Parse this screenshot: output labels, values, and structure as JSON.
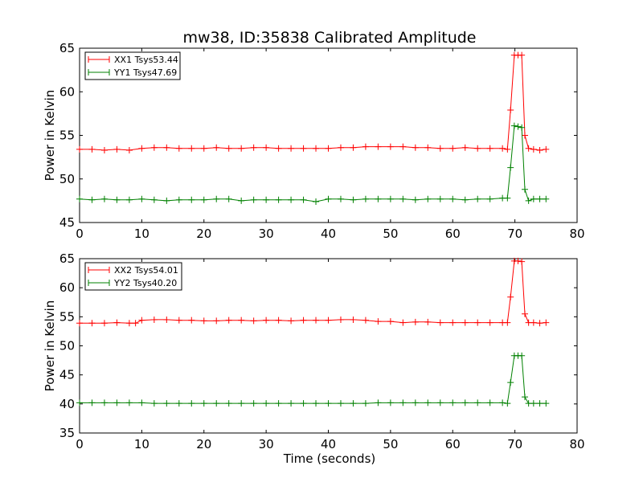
{
  "figure": {
    "title": "mw38, ID:35838 Calibrated Amplitude",
    "xlabel": "Time (seconds)"
  },
  "chart_data": [
    {
      "type": "line",
      "title": "mw38, ID:35838 Calibrated Amplitude",
      "xlabel": "",
      "ylabel": "Power in Kelvin",
      "xlim": [
        0,
        80
      ],
      "ylim": [
        45,
        65
      ],
      "xticks": [
        "0",
        "10",
        "20",
        "30",
        "40",
        "50",
        "60",
        "70",
        "80"
      ],
      "yticks": [
        "45",
        "50",
        "55",
        "60",
        "65"
      ],
      "legend_position": "top-left",
      "grid": false,
      "series": [
        {
          "name": "XX1 Tsys53.44",
          "color": "#ff0000",
          "x": [
            0,
            2,
            4,
            6,
            8,
            10,
            12,
            14,
            16,
            18,
            20,
            22,
            24,
            26,
            28,
            30,
            32,
            34,
            36,
            38,
            40,
            42,
            44,
            46,
            48,
            50,
            52,
            54,
            56,
            58,
            60,
            62,
            64,
            66,
            68,
            68.8,
            69.3,
            69.9,
            70.5,
            71.1,
            71.6,
            72.2,
            73,
            74,
            75
          ],
          "values": [
            53.4,
            53.4,
            53.3,
            53.4,
            53.3,
            53.5,
            53.6,
            53.6,
            53.5,
            53.5,
            53.5,
            53.6,
            53.5,
            53.5,
            53.6,
            53.6,
            53.5,
            53.5,
            53.5,
            53.5,
            53.5,
            53.6,
            53.6,
            53.7,
            53.7,
            53.7,
            53.7,
            53.6,
            53.6,
            53.5,
            53.5,
            53.6,
            53.5,
            53.5,
            53.5,
            53.4,
            57.9,
            64.2,
            64.2,
            64.2,
            55.0,
            53.5,
            53.4,
            53.3,
            53.4
          ]
        },
        {
          "name": "YY1 Tsys47.69",
          "color": "#008000",
          "x": [
            0,
            2,
            4,
            6,
            8,
            10,
            12,
            14,
            16,
            18,
            20,
            22,
            24,
            26,
            28,
            30,
            32,
            34,
            36,
            38,
            40,
            42,
            44,
            46,
            48,
            50,
            52,
            54,
            56,
            58,
            60,
            62,
            64,
            66,
            68,
            68.8,
            69.3,
            69.9,
            70.5,
            71.1,
            71.6,
            72.2,
            73,
            74,
            75
          ],
          "values": [
            47.7,
            47.6,
            47.7,
            47.6,
            47.6,
            47.7,
            47.6,
            47.5,
            47.6,
            47.6,
            47.6,
            47.7,
            47.7,
            47.5,
            47.6,
            47.6,
            47.6,
            47.6,
            47.6,
            47.4,
            47.7,
            47.7,
            47.6,
            47.7,
            47.7,
            47.7,
            47.7,
            47.6,
            47.7,
            47.7,
            47.7,
            47.6,
            47.7,
            47.7,
            47.8,
            47.8,
            51.3,
            56.1,
            56.0,
            55.9,
            48.8,
            47.5,
            47.7,
            47.7,
            47.7
          ]
        }
      ]
    },
    {
      "type": "line",
      "title": "",
      "xlabel": "Time (seconds)",
      "ylabel": "Power in Kelvin",
      "xlim": [
        0,
        80
      ],
      "ylim": [
        35,
        65
      ],
      "xticks": [
        "0",
        "10",
        "20",
        "30",
        "40",
        "50",
        "60",
        "70",
        "80"
      ],
      "yticks": [
        "35",
        "40",
        "45",
        "50",
        "55",
        "60",
        "65"
      ],
      "legend_position": "top-left",
      "grid": false,
      "series": [
        {
          "name": "XX2 Tsys54.01",
          "color": "#ff0000",
          "x": [
            0,
            2,
            4,
            6,
            8,
            9,
            10,
            12,
            14,
            16,
            18,
            20,
            22,
            24,
            26,
            28,
            30,
            32,
            34,
            36,
            38,
            40,
            42,
            44,
            46,
            48,
            50,
            52,
            54,
            56,
            58,
            60,
            62,
            64,
            66,
            68,
            68.8,
            69.3,
            69.9,
            70.5,
            71.1,
            71.6,
            72.2,
            73,
            74,
            75
          ],
          "values": [
            53.9,
            53.9,
            53.9,
            54.0,
            53.9,
            53.9,
            54.4,
            54.5,
            54.5,
            54.4,
            54.4,
            54.3,
            54.3,
            54.4,
            54.4,
            54.3,
            54.4,
            54.4,
            54.3,
            54.4,
            54.4,
            54.4,
            54.5,
            54.5,
            54.4,
            54.2,
            54.2,
            54.0,
            54.1,
            54.1,
            54.0,
            54.0,
            54.0,
            54.0,
            54.0,
            54.0,
            54.0,
            58.4,
            64.6,
            64.6,
            64.5,
            55.5,
            54.0,
            54.0,
            53.9,
            54.0
          ]
        },
        {
          "name": "YY2 Tsys40.20",
          "color": "#008000",
          "x": [
            0,
            2,
            4,
            6,
            8,
            10,
            12,
            14,
            16,
            18,
            20,
            22,
            24,
            26,
            28,
            30,
            32,
            34,
            36,
            38,
            40,
            42,
            44,
            46,
            48,
            50,
            52,
            54,
            56,
            58,
            60,
            62,
            64,
            66,
            68,
            68.8,
            69.3,
            69.9,
            70.5,
            71.1,
            71.6,
            72.2,
            73,
            74,
            75
          ],
          "values": [
            40.2,
            40.2,
            40.2,
            40.2,
            40.2,
            40.2,
            40.1,
            40.1,
            40.1,
            40.1,
            40.1,
            40.1,
            40.1,
            40.1,
            40.1,
            40.1,
            40.1,
            40.1,
            40.1,
            40.1,
            40.1,
            40.1,
            40.1,
            40.1,
            40.2,
            40.2,
            40.2,
            40.2,
            40.2,
            40.2,
            40.2,
            40.2,
            40.2,
            40.2,
            40.2,
            40.1,
            43.7,
            48.3,
            48.3,
            48.3,
            41.2,
            40.1,
            40.1,
            40.1,
            40.1
          ]
        }
      ]
    }
  ]
}
